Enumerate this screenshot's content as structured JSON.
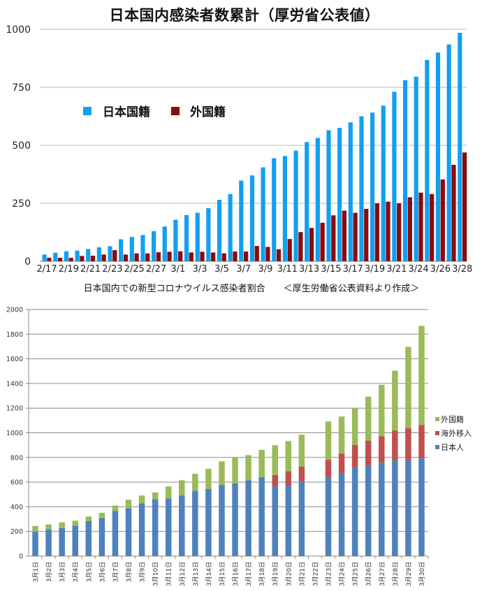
{
  "chart_data": [
    {
      "type": "bar",
      "title": "日本国内感染者数累計（厚労省公表値）",
      "xlabel": "",
      "ylabel": "",
      "ylim": [
        0,
        1000
      ],
      "yticks": [
        0,
        250,
        500,
        750,
        1000
      ],
      "grid": true,
      "legend_position": "upper-left",
      "categories": [
        "2/17",
        "2/18",
        "2/19",
        "2/20",
        "2/21",
        "2/22",
        "2/23",
        "2/24",
        "2/25",
        "2/26",
        "2/27",
        "2/28",
        "3/1",
        "3/2",
        "3/3",
        "3/4",
        "3/5",
        "3/6",
        "3/7",
        "3/8",
        "3/9",
        "3/10",
        "3/11",
        "3/12",
        "3/13",
        "3/14",
        "3/15",
        "3/16",
        "3/17",
        "3/18",
        "3/19",
        "3/20",
        "3/21",
        "3/23",
        "3/24",
        "3/25",
        "3/26",
        "3/27",
        "3/28"
      ],
      "xtick_labels": [
        "2/17",
        "",
        "2/19",
        "",
        "2/21",
        "",
        "2/23",
        "",
        "2/25",
        "",
        "2/27",
        "",
        "3/1",
        "",
        "3/3",
        "",
        "3/5",
        "",
        "3/7",
        "",
        "3/9",
        "",
        "3/11",
        "",
        "3/13",
        "",
        "3/15",
        "",
        "3/17",
        "",
        "3/19",
        "",
        "3/21",
        "",
        "3/24",
        "",
        "3/26",
        "",
        "3/28"
      ],
      "series": [
        {
          "name": "日本国籍",
          "color": "#139ff0",
          "values": [
            29,
            37,
            43,
            46,
            53,
            60,
            65,
            95,
            105,
            113,
            130,
            150,
            179,
            199,
            209,
            229,
            265,
            290,
            348,
            370,
            405,
            444,
            454,
            477,
            514,
            532,
            565,
            575,
            599,
            625,
            641,
            671,
            731,
            781,
            796,
            868,
            900,
            935,
            985
          ]
        },
        {
          "name": "外国籍",
          "color": "#8a0b0b",
          "values": [
            15,
            15,
            15,
            23,
            24,
            29,
            48,
            29,
            34,
            34,
            39,
            41,
            43,
            38,
            41,
            38,
            34,
            42,
            42,
            66,
            62,
            52,
            96,
            126,
            144,
            166,
            198,
            218,
            209,
            226,
            250,
            257,
            250,
            276,
            296,
            290,
            353,
            416,
            469
          ]
        }
      ]
    },
    {
      "type": "bar",
      "stacked": true,
      "title": "日本国内での新型コロナウイルス感染者割合　　＜厚生労働省公表資料より作成＞",
      "xlabel": "",
      "ylabel": "",
      "ylim": [
        0,
        2000
      ],
      "yticks": [
        0,
        200,
        400,
        600,
        800,
        1000,
        1200,
        1400,
        1600,
        1800,
        2000
      ],
      "grid": true,
      "legend_position": "right",
      "categories": [
        "3月1日",
        "3月2日",
        "3月3日",
        "3月4日",
        "3月5日",
        "3月6日",
        "3月7日",
        "3月8日",
        "3月9日",
        "3月10日",
        "3月11日",
        "3月12日",
        "3月13日",
        "3月14日",
        "3月15日",
        "3月16日",
        "3月17日",
        "3月18日",
        "3月19日",
        "3月20日",
        "3月21日",
        "3月22日",
        "3月23日",
        "3月24日",
        "3月25日",
        "3月26日",
        "3月27日",
        "3月28日",
        "3月29日",
        "3月30日"
      ],
      "series": [
        {
          "name": "日本人",
          "color": "#4f81bd",
          "values": [
            198,
            217,
            227,
            247,
            285,
            308,
            366,
            389,
            429,
            461,
            468,
            490,
            529,
            544,
            576,
            591,
            615,
            641,
            564,
            578,
            607,
            null,
            635,
            669,
            722,
            737,
            758,
            777,
            777,
            792
          ]
        },
        {
          "name": "海外移入",
          "color": "#c0504d",
          "values": [
            0,
            0,
            0,
            0,
            0,
            0,
            0,
            0,
            0,
            0,
            0,
            0,
            0,
            0,
            0,
            0,
            0,
            0,
            94,
            110,
            118,
            null,
            146,
            161,
            181,
            200,
            215,
            240,
            261,
            272
          ]
        },
        {
          "name": "外国籍",
          "color": "#9bbb59",
          "values": [
            46,
            40,
            47,
            40,
            36,
            43,
            44,
            68,
            62,
            55,
            97,
            125,
            138,
            164,
            192,
            213,
            204,
            221,
            241,
            245,
            260,
            null,
            311,
            302,
            293,
            356,
            416,
            486,
            659,
            803
          ]
        }
      ],
      "legend_order": [
        "外国籍",
        "海外移入",
        "日本人"
      ]
    }
  ]
}
